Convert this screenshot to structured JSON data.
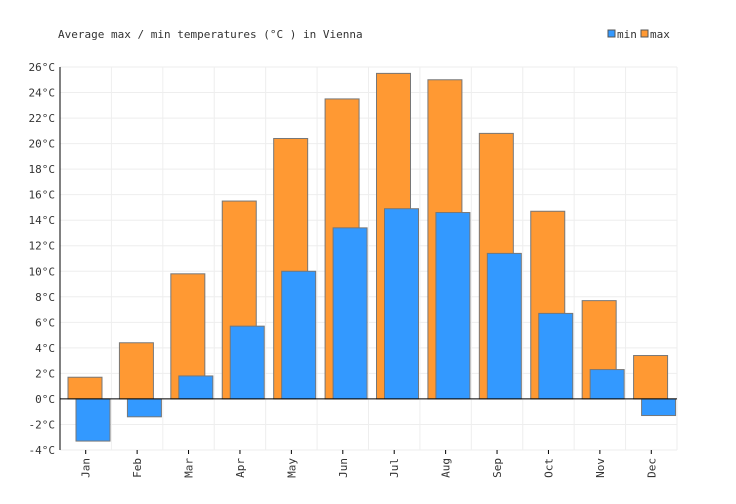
{
  "chart_data": {
    "type": "bar",
    "title": "Average max / min temperatures (°C ) in Vienna",
    "categories": [
      "Jan",
      "Feb",
      "Mar",
      "Apr",
      "May",
      "Jun",
      "Jul",
      "Aug",
      "Sep",
      "Oct",
      "Nov",
      "Dec"
    ],
    "series": [
      {
        "name": "max",
        "color": "#ff9933",
        "values": [
          1.7,
          4.4,
          9.8,
          15.5,
          20.4,
          23.5,
          25.5,
          25.0,
          20.8,
          14.7,
          7.7,
          3.4
        ]
      },
      {
        "name": "min",
        "color": "#3399ff",
        "values": [
          -3.3,
          -1.4,
          1.8,
          5.7,
          10.0,
          13.4,
          14.9,
          14.6,
          11.4,
          6.7,
          2.3,
          -1.3
        ]
      }
    ],
    "legend": [
      {
        "name": "min",
        "color": "#3399ff"
      },
      {
        "name": "max",
        "color": "#ff9933"
      }
    ],
    "legend_position": "top-right",
    "ylim": [
      -4,
      26
    ],
    "ytick_step": 2,
    "ytick_suffix": "°C",
    "grid": true,
    "xlabel": "",
    "ylabel": ""
  }
}
